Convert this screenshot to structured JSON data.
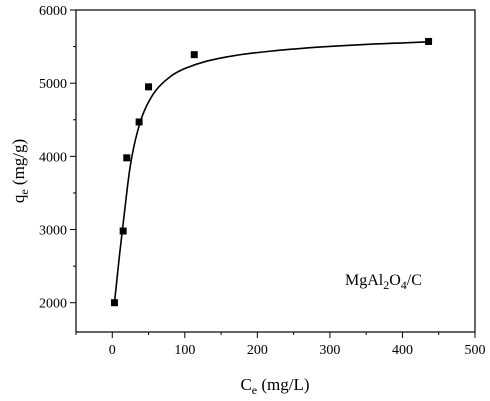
{
  "chart_data": {
    "type": "scatter",
    "xlabel": {
      "base": "C",
      "sub": "e",
      "rest": " (mg/L)"
    },
    "ylabel": {
      "base": "q",
      "sub": "e",
      "rest": " (mg/g)"
    },
    "xlim": [
      -50,
      500
    ],
    "ylim": [
      1600,
      6000
    ],
    "xticks": [
      0,
      100,
      200,
      300,
      400,
      500
    ],
    "yticks": [
      2000,
      3000,
      4000,
      5000,
      6000
    ],
    "xtick_labels": [
      "0",
      "100",
      "200",
      "300",
      "400",
      "500"
    ],
    "ytick_labels": [
      "2000",
      "3000",
      "4000",
      "5000",
      "6000"
    ],
    "annotation": [
      {
        "text": "MgAl",
        "sub": false
      },
      {
        "text": "2",
        "sub": true
      },
      {
        "text": "O",
        "sub": false
      },
      {
        "text": "4",
        "sub": true
      },
      {
        "text": "/C",
        "sub": false
      }
    ],
    "points": [
      {
        "x": 3,
        "y": 2000
      },
      {
        "x": 15,
        "y": 2980
      },
      {
        "x": 20,
        "y": 3980
      },
      {
        "x": 37,
        "y": 4470
      },
      {
        "x": 50,
        "y": 4950
      },
      {
        "x": 113,
        "y": 5390
      },
      {
        "x": 436,
        "y": 5570
      }
    ],
    "fit_curve": [
      {
        "x": 3,
        "y": 1990
      },
      {
        "x": 10,
        "y": 2650
      },
      {
        "x": 17,
        "y": 3250
      },
      {
        "x": 25,
        "y": 3880
      },
      {
        "x": 35,
        "y": 4350
      },
      {
        "x": 45,
        "y": 4640
      },
      {
        "x": 60,
        "y": 4900
      },
      {
        "x": 80,
        "y": 5090
      },
      {
        "x": 100,
        "y": 5200
      },
      {
        "x": 130,
        "y": 5300
      },
      {
        "x": 170,
        "y": 5380
      },
      {
        "x": 220,
        "y": 5440
      },
      {
        "x": 280,
        "y": 5490
      },
      {
        "x": 340,
        "y": 5525
      },
      {
        "x": 400,
        "y": 5550
      },
      {
        "x": 436,
        "y": 5565
      }
    ],
    "colors": {
      "marker": "#000000",
      "line": "#000000"
    }
  }
}
